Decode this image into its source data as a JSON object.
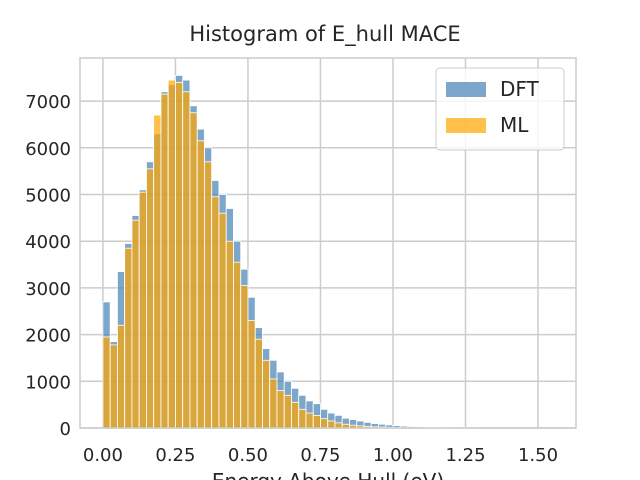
{
  "chart_data": {
    "type": "histogram",
    "title": "Histogram of E_hull MACE",
    "x_label": "Energy Above Hull (eV)",
    "bins": [
      0,
      0.025,
      0.05,
      0.075,
      0.1,
      0.125,
      0.15,
      0.175,
      0.2,
      0.225,
      0.25,
      0.275,
      0.3,
      0.325,
      0.35,
      0.375,
      0.4,
      0.425,
      0.45,
      0.475,
      0.5,
      0.525,
      0.55,
      0.575,
      0.6,
      0.625,
      0.65,
      0.675,
      0.7,
      0.725,
      0.75,
      0.775,
      0.8,
      0.825,
      0.85,
      0.875,
      0.9,
      0.925,
      0.95,
      0.975,
      1.0,
      1.025,
      1.05,
      1.075,
      1.1,
      1.125,
      1.15,
      1.175,
      1.2,
      1.225,
      1.25,
      1.275,
      1.3,
      1.325,
      1.35,
      1.375,
      1.4,
      1.425,
      1.45,
      1.475,
      1.5,
      1.525,
      1.55,
      1.575,
      1.6
    ],
    "series": [
      {
        "name": "DFT",
        "color": "#4682b4",
        "values": [
          2700,
          1850,
          3350,
          3950,
          4550,
          5100,
          5700,
          6300,
          7200,
          7350,
          7550,
          7450,
          6900,
          6400,
          6000,
          5300,
          5000,
          4700,
          4000,
          3400,
          2800,
          2150,
          1700,
          1450,
          1200,
          1000,
          850,
          700,
          580,
          520,
          400,
          320,
          270,
          210,
          180,
          150,
          120,
          95,
          80,
          65,
          50,
          40,
          32,
          25,
          20,
          16,
          12,
          10,
          8,
          6,
          5,
          4,
          3,
          3,
          2,
          2,
          2,
          1,
          1,
          1,
          1,
          1,
          1,
          1
        ]
      },
      {
        "name": "ML",
        "color": "#ffa500",
        "values": [
          1950,
          1780,
          2200,
          3850,
          4450,
          5050,
          5550,
          6700,
          7150,
          7450,
          7400,
          7200,
          6750,
          6150,
          5700,
          4950,
          4600,
          4000,
          3550,
          3050,
          2300,
          1900,
          1450,
          1050,
          800,
          700,
          550,
          400,
          320,
          270,
          200,
          150,
          110,
          80,
          60,
          45,
          35,
          25,
          20,
          15,
          12,
          10,
          8,
          6,
          5,
          4,
          3,
          2,
          2,
          1,
          1,
          1,
          1,
          0,
          0,
          0,
          0,
          0,
          0,
          0,
          0,
          0,
          0,
          0
        ]
      }
    ],
    "xlim": [
      -0.079,
      1.631
    ],
    "ylim": [
      0,
      7923
    ],
    "xticks": [
      {
        "value": 0,
        "label": "0.00"
      },
      {
        "value": 0.25,
        "label": "0.25"
      },
      {
        "value": 0.5,
        "label": "0.50"
      },
      {
        "value": 0.75,
        "label": "0.75"
      },
      {
        "value": 1.0,
        "label": "1.00"
      },
      {
        "value": 1.25,
        "label": "1.25"
      },
      {
        "value": 1.5,
        "label": "1.50"
      }
    ],
    "yticks": [
      0,
      1000,
      2000,
      3000,
      4000,
      5000,
      6000,
      7000
    ],
    "grid": true,
    "legend": "upper right",
    "opacity": 0.7
  }
}
